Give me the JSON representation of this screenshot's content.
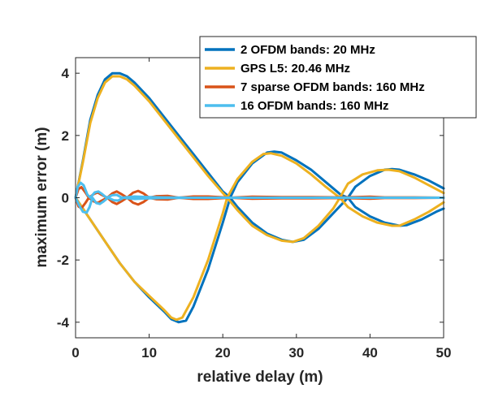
{
  "chart_data": {
    "type": "line",
    "xlabel": "relative delay (m)",
    "ylabel": "maximum error (m)",
    "xlim": [
      0,
      50
    ],
    "ylim": [
      -4.5,
      4.5
    ],
    "xticks": [
      0,
      10,
      20,
      30,
      40,
      50
    ],
    "yticks": [
      -4,
      -2,
      0,
      2,
      4
    ],
    "grid": false,
    "legend_position": "top-right",
    "series": [
      {
        "name": "2 OFDM bands: 20 MHz",
        "color": "#0072BD",
        "upper": [
          [
            0,
            0
          ],
          [
            1,
            1.2
          ],
          [
            2,
            2.5
          ],
          [
            3,
            3.3
          ],
          [
            4,
            3.8
          ],
          [
            5,
            4.0
          ],
          [
            6,
            4.0
          ],
          [
            7,
            3.9
          ],
          [
            8,
            3.7
          ],
          [
            10,
            3.2
          ],
          [
            12,
            2.6
          ],
          [
            14,
            2.0
          ],
          [
            16,
            1.4
          ],
          [
            18,
            0.8
          ],
          [
            20,
            0.2
          ],
          [
            21,
            0
          ],
          [
            22,
            0.5
          ],
          [
            24,
            1.1
          ],
          [
            26,
            1.45
          ],
          [
            27,
            1.48
          ],
          [
            28,
            1.45
          ],
          [
            30,
            1.2
          ],
          [
            32,
            0.9
          ],
          [
            34,
            0.5
          ],
          [
            36,
            0.1
          ],
          [
            37,
            0
          ],
          [
            38,
            0.35
          ],
          [
            40,
            0.7
          ],
          [
            42,
            0.9
          ],
          [
            43,
            0.92
          ],
          [
            44,
            0.9
          ],
          [
            46,
            0.75
          ],
          [
            48,
            0.55
          ],
          [
            50,
            0.3
          ]
        ],
        "lower": [
          [
            0,
            0
          ],
          [
            2,
            -0.7
          ],
          [
            4,
            -1.4
          ],
          [
            6,
            -2.1
          ],
          [
            8,
            -2.7
          ],
          [
            10,
            -3.2
          ],
          [
            12,
            -3.65
          ],
          [
            13,
            -3.9
          ],
          [
            14,
            -4.0
          ],
          [
            15,
            -3.95
          ],
          [
            16,
            -3.5
          ],
          [
            18,
            -2.3
          ],
          [
            20,
            -0.8
          ],
          [
            21,
            0
          ],
          [
            22,
            -0.3
          ],
          [
            24,
            -0.8
          ],
          [
            26,
            -1.15
          ],
          [
            28,
            -1.35
          ],
          [
            29.5,
            -1.42
          ],
          [
            31,
            -1.35
          ],
          [
            33,
            -1.0
          ],
          [
            35,
            -0.5
          ],
          [
            37,
            0
          ],
          [
            38,
            -0.3
          ],
          [
            40,
            -0.6
          ],
          [
            42,
            -0.8
          ],
          [
            44,
            -0.9
          ],
          [
            45,
            -0.88
          ],
          [
            47,
            -0.7
          ],
          [
            49,
            -0.45
          ],
          [
            50,
            -0.35
          ]
        ]
      },
      {
        "name": "GPS L5: 20.46 MHz",
        "color": "#EDB120",
        "upper": [
          [
            0,
            0
          ],
          [
            1,
            1.15
          ],
          [
            2,
            2.4
          ],
          [
            3,
            3.2
          ],
          [
            4,
            3.7
          ],
          [
            5,
            3.9
          ],
          [
            6,
            3.9
          ],
          [
            7,
            3.8
          ],
          [
            8,
            3.6
          ],
          [
            10,
            3.1
          ],
          [
            12,
            2.5
          ],
          [
            14,
            1.9
          ],
          [
            16,
            1.3
          ],
          [
            18,
            0.7
          ],
          [
            20,
            0.15
          ],
          [
            20.6,
            0
          ],
          [
            22,
            0.6
          ],
          [
            24,
            1.15
          ],
          [
            25.5,
            1.4
          ],
          [
            26.5,
            1.43
          ],
          [
            28,
            1.35
          ],
          [
            30,
            1.1
          ],
          [
            32,
            0.75
          ],
          [
            34,
            0.35
          ],
          [
            35.9,
            0
          ],
          [
            37,
            0.45
          ],
          [
            39,
            0.75
          ],
          [
            41,
            0.88
          ],
          [
            42.5,
            0.9
          ],
          [
            44,
            0.85
          ],
          [
            46,
            0.65
          ],
          [
            48,
            0.4
          ],
          [
            50,
            0.15
          ]
        ],
        "lower": [
          [
            0,
            0
          ],
          [
            2,
            -0.7
          ],
          [
            4,
            -1.4
          ],
          [
            6,
            -2.1
          ],
          [
            8,
            -2.7
          ],
          [
            10,
            -3.15
          ],
          [
            12,
            -3.6
          ],
          [
            13,
            -3.85
          ],
          [
            13.7,
            -3.92
          ],
          [
            14.5,
            -3.85
          ],
          [
            16,
            -3.2
          ],
          [
            18,
            -2.0
          ],
          [
            20,
            -0.5
          ],
          [
            20.6,
            0
          ],
          [
            22,
            -0.4
          ],
          [
            24,
            -0.9
          ],
          [
            26,
            -1.2
          ],
          [
            28,
            -1.38
          ],
          [
            29.5,
            -1.42
          ],
          [
            31,
            -1.3
          ],
          [
            33,
            -0.9
          ],
          [
            35,
            -0.35
          ],
          [
            35.9,
            0
          ],
          [
            37,
            -0.3
          ],
          [
            39,
            -0.6
          ],
          [
            41,
            -0.8
          ],
          [
            43,
            -0.9
          ],
          [
            44,
            -0.9
          ],
          [
            46,
            -0.7
          ],
          [
            48,
            -0.45
          ],
          [
            50,
            -0.15
          ]
        ]
      },
      {
        "name": "7 sparse OFDM bands: 160 MHz",
        "color": "#D95319",
        "upper": [
          [
            0,
            0
          ],
          [
            0.4,
            0.28
          ],
          [
            0.8,
            0.34
          ],
          [
            1.3,
            0.18
          ],
          [
            1.8,
            0
          ],
          [
            2.5,
            0.12
          ],
          [
            3,
            0.17
          ],
          [
            3.5,
            0.1
          ],
          [
            4.3,
            0
          ],
          [
            5,
            0.14
          ],
          [
            5.6,
            0.2
          ],
          [
            6.2,
            0.12
          ],
          [
            7,
            0
          ],
          [
            7.8,
            0.16
          ],
          [
            8.5,
            0.22
          ],
          [
            9.2,
            0.14
          ],
          [
            10,
            0
          ],
          [
            11,
            0.05
          ],
          [
            12.5,
            0.06
          ],
          [
            14,
            0
          ],
          [
            16,
            0.04
          ],
          [
            18,
            0.04
          ],
          [
            21,
            0
          ],
          [
            24,
            0.03
          ],
          [
            28,
            0.02
          ],
          [
            32,
            0.02
          ],
          [
            36,
            0.01
          ],
          [
            38,
            0.02
          ],
          [
            40,
            0.03
          ],
          [
            42,
            0.01
          ],
          [
            46,
            0.01
          ],
          [
            50,
            0
          ]
        ],
        "lower": [
          [
            0,
            0
          ],
          [
            0.4,
            -0.28
          ],
          [
            0.8,
            -0.34
          ],
          [
            1.3,
            -0.18
          ],
          [
            1.8,
            0
          ],
          [
            2.5,
            -0.12
          ],
          [
            3,
            -0.17
          ],
          [
            3.5,
            -0.1
          ],
          [
            4.3,
            0
          ],
          [
            5,
            -0.14
          ],
          [
            5.6,
            -0.2
          ],
          [
            6.2,
            -0.12
          ],
          [
            7,
            0
          ],
          [
            7.8,
            -0.16
          ],
          [
            8.5,
            -0.22
          ],
          [
            9.2,
            -0.14
          ],
          [
            10,
            0
          ],
          [
            11,
            -0.05
          ],
          [
            12.5,
            -0.06
          ],
          [
            14,
            0
          ],
          [
            16,
            -0.04
          ],
          [
            18,
            -0.04
          ],
          [
            21,
            0
          ],
          [
            24,
            -0.03
          ],
          [
            28,
            -0.02
          ],
          [
            32,
            -0.02
          ],
          [
            36,
            -0.01
          ],
          [
            38,
            -0.02
          ],
          [
            40,
            -0.03
          ],
          [
            42,
            -0.01
          ],
          [
            46,
            -0.01
          ],
          [
            50,
            0
          ]
        ]
      },
      {
        "name": "16 OFDM bands: 160 MHz",
        "color": "#4DBEEE",
        "upper": [
          [
            0,
            0
          ],
          [
            0.3,
            0.35
          ],
          [
            0.7,
            0.48
          ],
          [
            1.1,
            0.4
          ],
          [
            1.6,
            0.1
          ],
          [
            2,
            0
          ],
          [
            2.6,
            0.17
          ],
          [
            3.1,
            0.2
          ],
          [
            3.6,
            0.12
          ],
          [
            4.2,
            0
          ],
          [
            5,
            0.08
          ],
          [
            5.6,
            0.09
          ],
          [
            6.3,
            0
          ],
          [
            8,
            0.04
          ],
          [
            10,
            0.02
          ],
          [
            12,
            0.01
          ],
          [
            16,
            0
          ],
          [
            20,
            0
          ],
          [
            25,
            0
          ],
          [
            30,
            0
          ],
          [
            40,
            0
          ],
          [
            50,
            0
          ]
        ],
        "lower": [
          [
            0,
            0
          ],
          [
            0.5,
            -0.25
          ],
          [
            1,
            -0.45
          ],
          [
            1.5,
            -0.48
          ],
          [
            1.9,
            -0.3
          ],
          [
            2.3,
            0
          ],
          [
            2.8,
            -0.17
          ],
          [
            3.3,
            -0.2
          ],
          [
            3.8,
            -0.12
          ],
          [
            4.4,
            0
          ],
          [
            5.2,
            -0.08
          ],
          [
            5.8,
            -0.09
          ],
          [
            6.5,
            0
          ],
          [
            8,
            -0.04
          ],
          [
            10,
            -0.02
          ],
          [
            12,
            -0.01
          ],
          [
            16,
            0
          ],
          [
            20,
            0
          ],
          [
            25,
            0
          ],
          [
            30,
            0
          ],
          [
            40,
            0
          ],
          [
            50,
            0
          ]
        ]
      }
    ]
  }
}
